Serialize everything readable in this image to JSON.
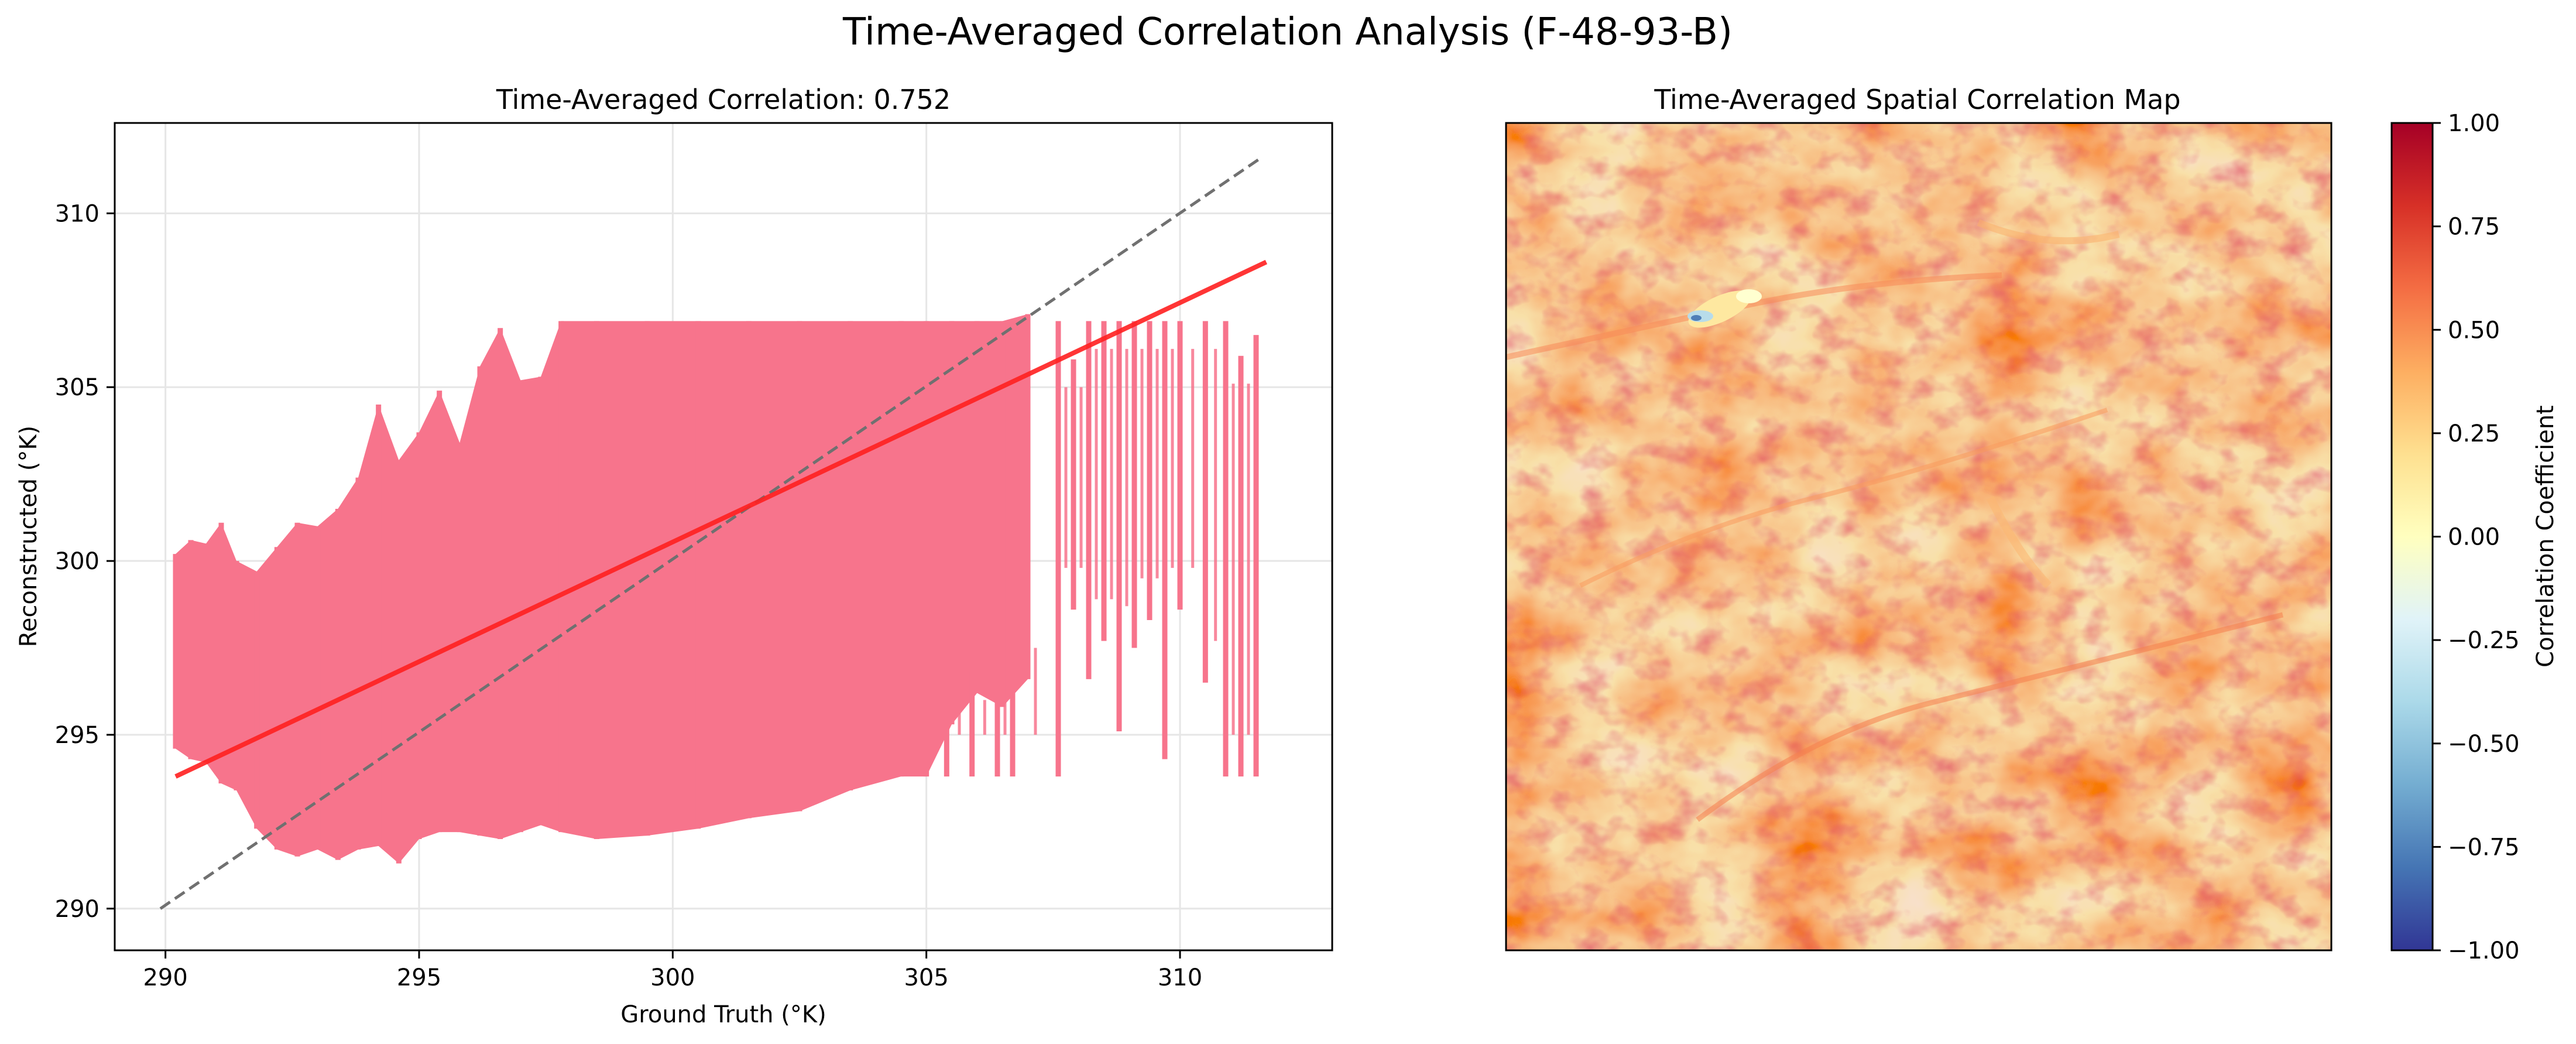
{
  "figure": {
    "suptitle": "Time-Averaged Correlation Analysis (F-48-93-B)"
  },
  "colors": {
    "scatter": "#f7748c",
    "fit_line": "#ff2020",
    "identity_line": "#707070",
    "grid": "#e6e6e6",
    "colormap": "RdYlBu_r"
  },
  "chart_data": [
    {
      "type": "scatter",
      "title": "Time-Averaged Correlation: 0.752",
      "xlabel": "Ground Truth (°K)",
      "ylabel": "Reconstructed (°K)",
      "xlim": [
        289,
        313
      ],
      "ylim": [
        288.8,
        312.6
      ],
      "xticks": [
        290,
        295,
        300,
        305,
        310
      ],
      "yticks": [
        290,
        295,
        300,
        305,
        310
      ],
      "grid": true,
      "point_cloud": {
        "description_x_range": [
          290.1,
          311.7
        ],
        "dense_columns": [
          {
            "x": 290.2,
            "ymin": 294.6,
            "ymax": 300.2
          },
          {
            "x": 290.5,
            "ymin": 294.3,
            "ymax": 300.6
          },
          {
            "x": 290.8,
            "ymin": 294.2,
            "ymax": 300.5
          },
          {
            "x": 291.1,
            "ymin": 293.6,
            "ymax": 301.1
          },
          {
            "x": 291.4,
            "ymin": 293.4,
            "ymax": 300.0
          },
          {
            "x": 291.8,
            "ymin": 292.3,
            "ymax": 299.7
          },
          {
            "x": 292.2,
            "ymin": 291.7,
            "ymax": 300.4
          },
          {
            "x": 292.6,
            "ymin": 291.5,
            "ymax": 301.1
          },
          {
            "x": 293.0,
            "ymin": 291.7,
            "ymax": 301.0
          },
          {
            "x": 293.4,
            "ymin": 291.4,
            "ymax": 301.5
          },
          {
            "x": 293.8,
            "ymin": 291.7,
            "ymax": 302.4
          },
          {
            "x": 294.2,
            "ymin": 291.8,
            "ymax": 304.5
          },
          {
            "x": 294.6,
            "ymin": 291.3,
            "ymax": 302.9
          },
          {
            "x": 295.0,
            "ymin": 292.0,
            "ymax": 303.7
          },
          {
            "x": 295.4,
            "ymin": 292.2,
            "ymax": 304.9
          },
          {
            "x": 295.8,
            "ymin": 292.2,
            "ymax": 303.4
          },
          {
            "x": 296.2,
            "ymin": 292.1,
            "ymax": 305.6
          },
          {
            "x": 296.6,
            "ymin": 292.0,
            "ymax": 306.7
          },
          {
            "x": 297.0,
            "ymin": 292.2,
            "ymax": 305.2
          },
          {
            "x": 297.4,
            "ymin": 292.4,
            "ymax": 305.3
          },
          {
            "x": 297.8,
            "ymin": 292.2,
            "ymax": 306.9
          },
          {
            "x": 298.5,
            "ymin": 292.0,
            "ymax": 306.9
          },
          {
            "x": 299.5,
            "ymin": 292.1,
            "ymax": 306.9
          },
          {
            "x": 300.5,
            "ymin": 292.3,
            "ymax": 306.9
          },
          {
            "x": 301.5,
            "ymin": 292.6,
            "ymax": 306.9
          },
          {
            "x": 302.5,
            "ymin": 292.8,
            "ymax": 306.9
          },
          {
            "x": 303.5,
            "ymin": 293.4,
            "ymax": 306.9
          },
          {
            "x": 304.5,
            "ymin": 293.8,
            "ymax": 306.9
          },
          {
            "x": 305.0,
            "ymin": 293.8,
            "ymax": 306.9
          },
          {
            "x": 305.5,
            "ymin": 295.3,
            "ymax": 306.9
          },
          {
            "x": 306.0,
            "ymin": 296.2,
            "ymax": 306.9
          },
          {
            "x": 306.5,
            "ymin": 295.8,
            "ymax": 306.9
          },
          {
            "x": 307.0,
            "ymin": 296.6,
            "ymax": 307.1
          }
        ],
        "sparse_columns": [
          {
            "x": 305.4,
            "ymin": 293.8,
            "ymax": 298.2
          },
          {
            "x": 305.9,
            "ymin": 293.8,
            "ymax": 296.8
          },
          {
            "x": 306.4,
            "ymin": 293.8,
            "ymax": 297.5
          },
          {
            "x": 306.7,
            "ymin": 293.8,
            "ymax": 298.3
          },
          {
            "x": 307.6,
            "ymin": 293.8,
            "ymax": 306.9
          },
          {
            "x": 307.9,
            "ymin": 298.6,
            "ymax": 305.8
          },
          {
            "x": 308.2,
            "ymin": 296.6,
            "ymax": 306.9
          },
          {
            "x": 308.5,
            "ymin": 297.7,
            "ymax": 306.9
          },
          {
            "x": 308.8,
            "ymin": 295.1,
            "ymax": 306.9
          },
          {
            "x": 309.1,
            "ymin": 297.5,
            "ymax": 306.9
          },
          {
            "x": 309.4,
            "ymin": 298.3,
            "ymax": 306.9
          },
          {
            "x": 309.7,
            "ymin": 294.3,
            "ymax": 306.9
          },
          {
            "x": 310.0,
            "ymin": 298.6,
            "ymax": 306.9
          },
          {
            "x": 310.5,
            "ymin": 296.5,
            "ymax": 306.9
          },
          {
            "x": 310.9,
            "ymin": 293.8,
            "ymax": 306.9
          },
          {
            "x": 311.2,
            "ymin": 293.8,
            "ymax": 305.9
          },
          {
            "x": 311.5,
            "ymin": 293.8,
            "ymax": 306.5
          }
        ]
      },
      "fit_line": {
        "x": [
          290.2,
          311.7
        ],
        "y": [
          293.8,
          308.6
        ]
      },
      "identity_line": {
        "x": [
          289.9,
          311.6
        ],
        "y": [
          290.0,
          311.6
        ]
      }
    },
    {
      "type": "heatmap",
      "title": "Time-Averaged Spatial Correlation Map",
      "colorbar": {
        "label": "Correlation Coefficient",
        "range": [
          -1.0,
          1.0
        ],
        "ticks": [
          "1.00",
          "0.75",
          "0.50",
          "0.25",
          "0.00",
          "−0.25",
          "−0.50",
          "−0.75",
          "−1.00"
        ],
        "tick_values": [
          1.0,
          0.75,
          0.5,
          0.25,
          0.0,
          -0.25,
          -0.5,
          -0.75,
          -1.0
        ]
      },
      "dominant_value_range": [
        0.55,
        0.95
      ],
      "outlier_region": {
        "location": "upper-left",
        "min_value": -0.6
      }
    }
  ]
}
